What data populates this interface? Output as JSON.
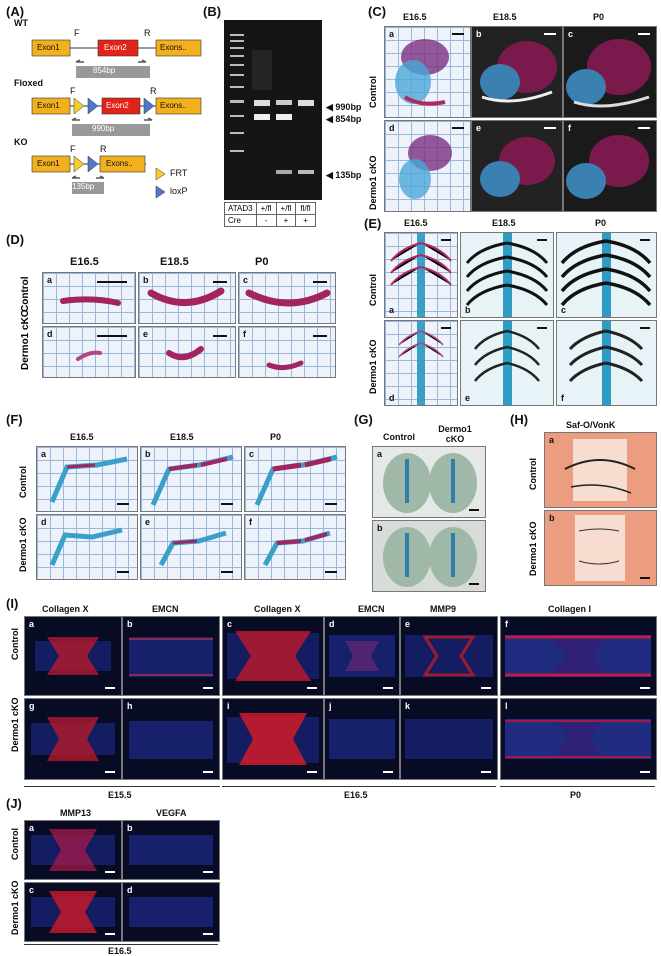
{
  "panelA": {
    "label": "(A)",
    "wt": "WT",
    "floxed": "Floxed",
    "ko": "KO",
    "exon1": "Exon1",
    "exon2": "Exon2",
    "exons": "Exons..",
    "f": "F",
    "r": "R",
    "bp854": "854bp",
    "bp990": "990bp",
    "bp135": "135bp",
    "legend_frt": "FRT",
    "legend_loxp": "loxP",
    "frt_color": "#f4d026",
    "loxp_color": "#4f79c9",
    "exon_color": "#f2b01e",
    "exon2_color": "#e2231a"
  },
  "panelB": {
    "label": "(B)",
    "band990": "990bp",
    "band854": "854bp",
    "band135": "135bp",
    "row1": [
      "ATAD3",
      "+/fl",
      "+/fl",
      "fl/fl"
    ],
    "row2": [
      "Cre",
      "-",
      "+",
      "+"
    ]
  },
  "panelC": {
    "label": "(C)",
    "cols": [
      "E16.5",
      "E18.5",
      "P0"
    ],
    "rows": [
      "Control",
      "Dermo1 cKO"
    ],
    "subs": [
      "a",
      "b",
      "c",
      "d",
      "e",
      "f"
    ]
  },
  "panelD": {
    "label": "(D)",
    "cols": [
      "E16.5",
      "E18.5",
      "P0"
    ],
    "rows": [
      "Control",
      "Dermo1 cKO"
    ],
    "subs": [
      "a",
      "b",
      "c",
      "d",
      "e",
      "f"
    ]
  },
  "panelE": {
    "label": "(E)",
    "cols": [
      "E16.5",
      "E18.5",
      "P0"
    ],
    "rows": [
      "Control",
      "Dermo1 cKO"
    ],
    "subs": [
      "a",
      "b",
      "c",
      "d",
      "e",
      "f"
    ]
  },
  "panelF": {
    "label": "(F)",
    "cols": [
      "E16.5",
      "E18.5",
      "P0"
    ],
    "rows": [
      "Control",
      "Dermo1 cKO"
    ],
    "subs": [
      "a",
      "b",
      "c",
      "d",
      "e",
      "f"
    ]
  },
  "panelG": {
    "label": "(G)",
    "cols": [
      "Control",
      "Dermo1 cKO"
    ],
    "subs": [
      "a",
      "b"
    ]
  },
  "panelH": {
    "label": "(H)",
    "title": "Saf-O/VonK",
    "rows": [
      "Control",
      "Dermo1 cKO"
    ],
    "subs": [
      "a",
      "b"
    ]
  },
  "panelI": {
    "label": "(I)",
    "cols": [
      "Collagen X",
      "EMCN",
      "Collagen X",
      "EMCN",
      "MMP9",
      "Collagen I"
    ],
    "rows": [
      "Control",
      "Dermo1 cKO"
    ],
    "subs_top": [
      "a",
      "b",
      "c",
      "d",
      "e",
      "f"
    ],
    "subs_bottom": [
      "g",
      "h",
      "i",
      "j",
      "k",
      "l"
    ],
    "stages": [
      "E15.5",
      "E16.5",
      "P0"
    ]
  },
  "panelJ": {
    "label": "(J)",
    "cols": [
      "MMP13",
      "VEGFA"
    ],
    "rows": [
      "Control",
      "Dermo1 cKO"
    ],
    "subs": [
      "a",
      "b",
      "c",
      "d"
    ],
    "stage": "E16.5"
  }
}
